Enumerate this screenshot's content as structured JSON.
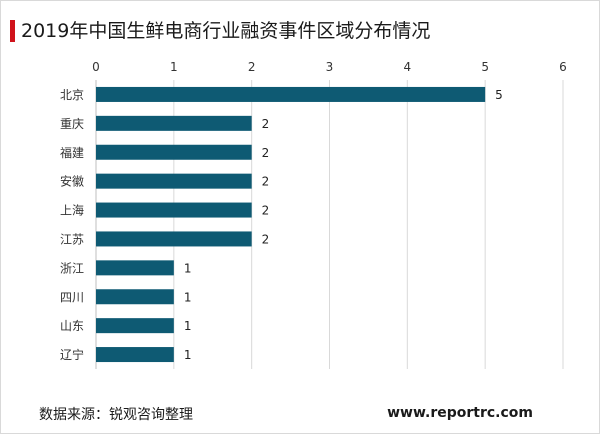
{
  "title": "2019年中国生鲜电商行业融资事件区域分布情况",
  "footer": {
    "source": "数据来源：锐观咨询整理",
    "site": "www.reportrc.com"
  },
  "colors": {
    "bar": "#0e5a73",
    "accent": "#d0131b",
    "grid": "#d9d9d9"
  },
  "chart_data": {
    "type": "bar",
    "orientation": "horizontal",
    "categories": [
      "北京",
      "重庆",
      "福建",
      "安徽",
      "上海",
      "江苏",
      "浙江",
      "四川",
      "山东",
      "辽宁"
    ],
    "values": [
      5,
      2,
      2,
      2,
      2,
      2,
      1,
      1,
      1,
      1
    ],
    "xlim": [
      0,
      6
    ],
    "xticks": [
      0,
      1,
      2,
      3,
      4,
      5,
      6
    ],
    "x_axis_position": "top",
    "grid": true,
    "data_labels": true,
    "legend": false
  }
}
